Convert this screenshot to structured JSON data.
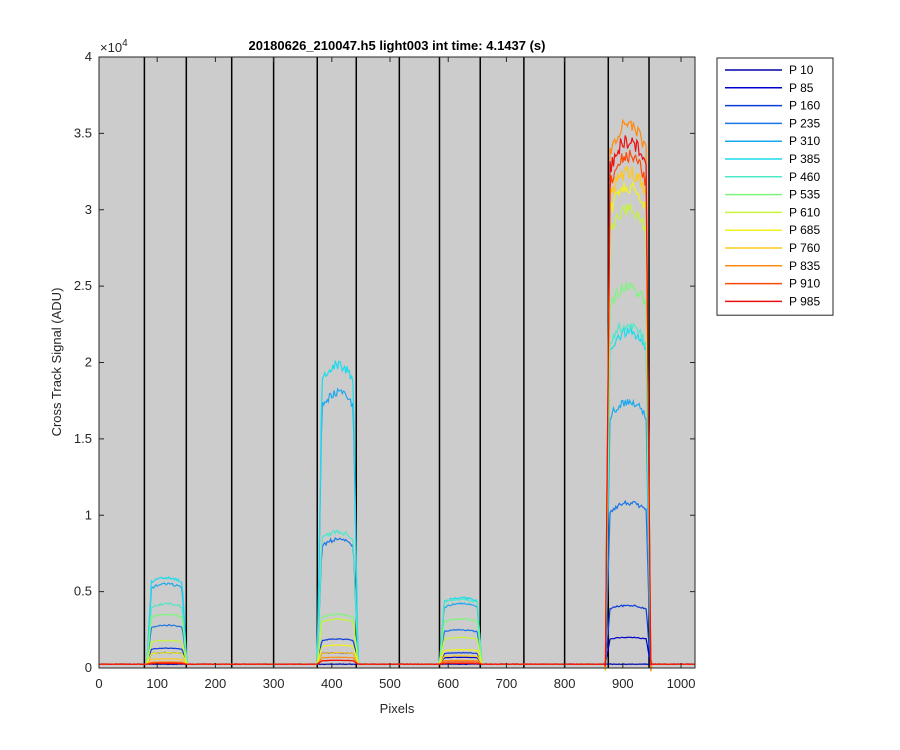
{
  "chart_data": {
    "type": "line",
    "title": "20180626_210047.h5  light003   int time: 4.1437 (s)",
    "xlabel": "Pixels",
    "ylabel": "Cross Track Signal (ADU)",
    "xlim": [
      0,
      1024
    ],
    "ylim": [
      0,
      40000
    ],
    "x_ticks": [
      0,
      100,
      200,
      300,
      400,
      500,
      600,
      700,
      800,
      900,
      1000
    ],
    "x_tick_labels": [
      "0",
      "100",
      "200",
      "300",
      "400",
      "500",
      "600",
      "700",
      "800",
      "900",
      "1000"
    ],
    "y_ticks": [
      0,
      5000,
      10000,
      15000,
      20000,
      25000,
      30000,
      35000,
      40000
    ],
    "y_tick_labels": [
      "0",
      "0.5",
      "1",
      "1.5",
      "2",
      "2.5",
      "3",
      "3.5",
      "4"
    ],
    "y_exponent_label": "×10",
    "y_exponent_power": "4",
    "background_color": "#cccccc",
    "grid": false,
    "vertical_markers": [
      78,
      150,
      228,
      300,
      375,
      442,
      516,
      585,
      655,
      730,
      800,
      875,
      945
    ],
    "baseline": 250,
    "windows": [
      {
        "start": 85,
        "end": 148,
        "peaks": [
          0,
          1000,
          1300,
          2800,
          5500,
          5900,
          4200,
          3500,
          1800,
          1000,
          600,
          400,
          350,
          300
        ]
      },
      {
        "start": 378,
        "end": 442,
        "peaks": [
          0,
          1000,
          1900,
          8400,
          18000,
          19800,
          8900,
          3500,
          3200,
          1500,
          1000,
          700,
          500,
          500
        ]
      },
      {
        "start": 588,
        "end": 655,
        "peaks": [
          0,
          700,
          1000,
          2500,
          4200,
          4600,
          4500,
          3200,
          2000,
          1200,
          800,
          500,
          400,
          300
        ]
      },
      {
        "start": 873,
        "end": 945,
        "peaks": [
          0,
          2000,
          4100,
          10800,
          17400,
          22000,
          22500,
          25000,
          30000,
          31500,
          32500,
          35500,
          33500,
          34500
        ]
      }
    ],
    "series": [
      {
        "name": "P 10",
        "color": "#0000aa"
      },
      {
        "name": "P 85",
        "color": "#0000cc"
      },
      {
        "name": "P 160",
        "color": "#0a3dd9"
      },
      {
        "name": "P 235",
        "color": "#1976e6"
      },
      {
        "name": "P 310",
        "color": "#1aa9ee"
      },
      {
        "name": "P 385",
        "color": "#19dcec"
      },
      {
        "name": "P 460",
        "color": "#4de8c8"
      },
      {
        "name": "P 535",
        "color": "#7ef57e"
      },
      {
        "name": "P 610",
        "color": "#c6f53a"
      },
      {
        "name": "P 685",
        "color": "#f2f21a"
      },
      {
        "name": "P 760",
        "color": "#ffc81a"
      },
      {
        "name": "P 835",
        "color": "#ff8a10"
      },
      {
        "name": "P 910",
        "color": "#ff4a0a"
      },
      {
        "name": "P 985",
        "color": "#ee1010"
      }
    ]
  }
}
